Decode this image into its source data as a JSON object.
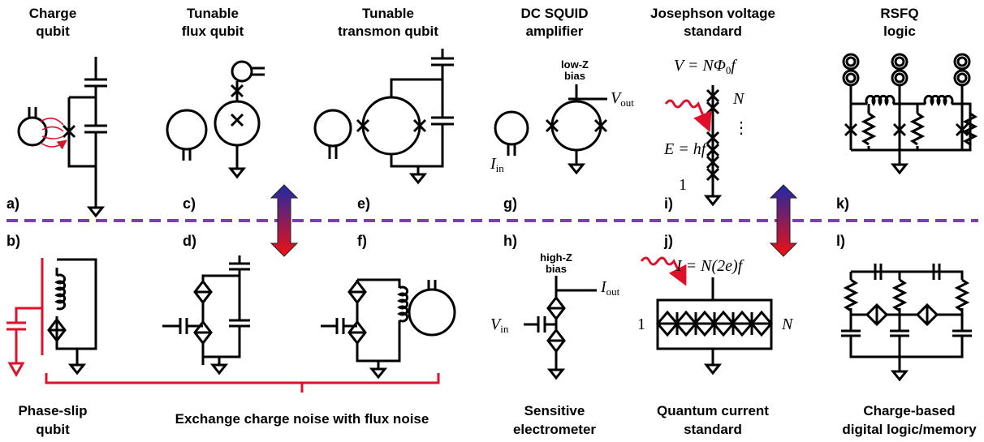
{
  "top_panels": [
    {
      "title": [
        "Charge",
        "qubit"
      ],
      "label": "a)"
    },
    {
      "title": [
        "Tunable",
        "flux qubit"
      ],
      "label": "c)"
    },
    {
      "title": [
        "Tunable",
        "transmon qubit"
      ],
      "label": "e)"
    },
    {
      "title": [
        "DC SQUID",
        "amplifier"
      ],
      "label": "g)"
    },
    {
      "title": [
        "Josephson voltage",
        "standard"
      ],
      "label": "i)"
    },
    {
      "title": [
        "RSFQ",
        "logic"
      ],
      "label": "k)"
    }
  ],
  "bottom_panels": [
    {
      "label": "b)",
      "title": [
        "Phase-slip",
        "qubit"
      ]
    },
    {
      "label": "d)"
    },
    {
      "label": "f)"
    },
    {
      "label": "h)",
      "title": [
        "Sensitive",
        "electrometer"
      ]
    },
    {
      "label": "j)",
      "title": [
        "Quantum current",
        "standard"
      ]
    },
    {
      "label": "l)",
      "title": [
        "Charge-based",
        "digital logic/memory"
      ]
    }
  ],
  "bracket_caption": "Exchange charge noise with flux noise",
  "squid": {
    "bias": [
      "low-Z",
      "bias"
    ],
    "output": {
      "symbol": "V",
      "subscript": "out"
    },
    "input": {
      "symbol": "I",
      "subscript": "in"
    }
  },
  "voltage_standard": {
    "formula": [
      "V = NΦ",
      "0",
      "f"
    ],
    "count": "N",
    "dots": "⋮",
    "photon": "E = hf",
    "first": "1"
  },
  "electrometer": {
    "bias": [
      "high-Z",
      "bias"
    ],
    "output": {
      "symbol": "I",
      "subscript": "out"
    },
    "input": {
      "symbol": "V",
      "subscript": "in"
    }
  },
  "current_standard": {
    "formula": "I = N(2e)f",
    "first": "1",
    "count": "N"
  }
}
